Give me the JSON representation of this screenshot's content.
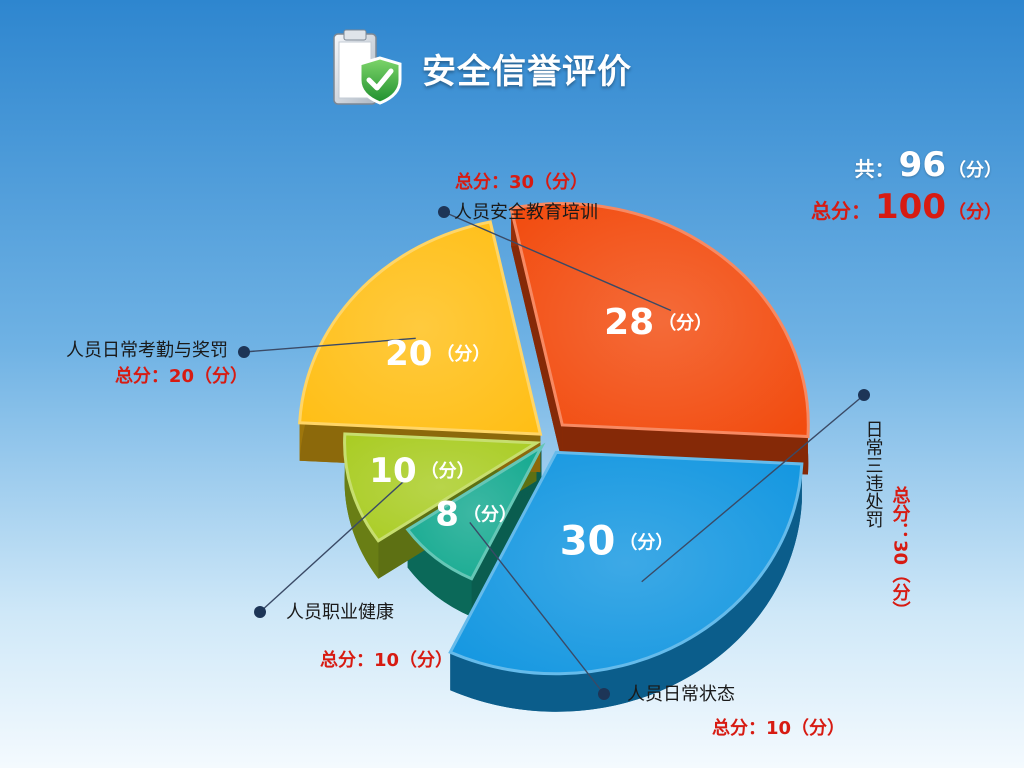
{
  "header": {
    "title": "安全信誉评价",
    "icon": "clipboard-shield-check-icon"
  },
  "totals": {
    "score_label": "共：",
    "score_value": "96",
    "score_unit": "（分）",
    "full_label": "总分：",
    "full_value": "100",
    "full_unit": "（分）"
  },
  "chart_data": {
    "type": "pie",
    "title": "",
    "unit": "（分）",
    "slices": [
      {
        "name": "人员安全教育培训",
        "value": 28,
        "max_label": "总分：30（分）",
        "color": "#f24a0d"
      },
      {
        "name": "日常三违处罚",
        "value": 30,
        "max_label": "总分：30（分）",
        "color": "#1296e0"
      },
      {
        "name": "人员日常状态",
        "value": 8,
        "max_label": "总分：10（分）",
        "color": "#12a98f"
      },
      {
        "name": "人员职业健康",
        "value": 10,
        "max_label": "总分：10（分）",
        "color": "#a9cc22"
      },
      {
        "name": "人员日常考勤与奖罚",
        "value": 20,
        "max_label": "总分：20（分）",
        "color": "#ffbe14"
      }
    ]
  }
}
